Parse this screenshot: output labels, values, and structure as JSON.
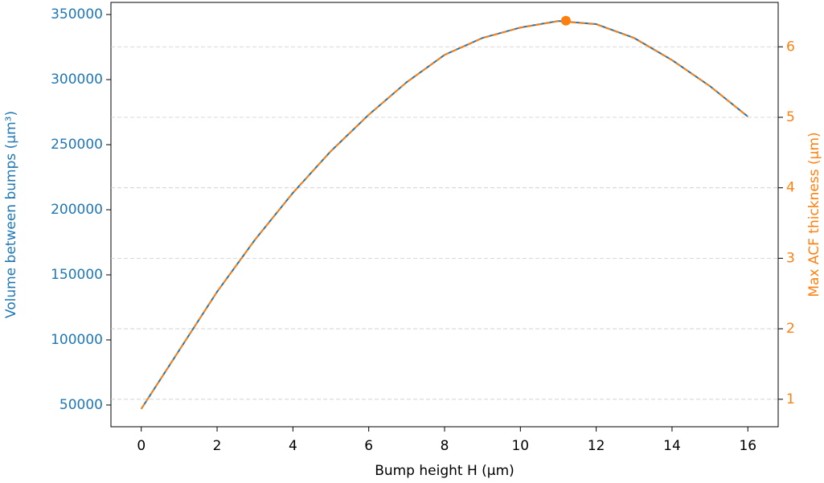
{
  "chart_data": {
    "type": "line",
    "xlabel": "Bump height H (µm)",
    "ylabel": "Volume between bumps (µm³)",
    "y2label": "Max ACF thickness (µm)",
    "x": [
      0,
      1,
      2,
      3,
      4,
      5,
      6,
      7,
      8,
      9,
      10,
      11,
      12,
      13,
      14,
      15,
      16
    ],
    "series": [
      {
        "color": "#1f77b4",
        "linestyle": "solid",
        "axis": "y",
        "values": [
          47000,
          92000,
          137000,
          177000,
          213000,
          245000,
          273000,
          298000,
          319000,
          332000,
          340000,
          345000,
          342600,
          332000,
          315000,
          295000,
          271600
        ]
      },
      {
        "color": "#ff7f0e",
        "linestyle": "dashed",
        "axis": "y2",
        "values": [
          0.864,
          1.695,
          2.525,
          3.263,
          3.927,
          4.518,
          5.035,
          5.497,
          5.884,
          6.123,
          6.271,
          6.363,
          6.319,
          6.123,
          5.81,
          5.441,
          5.009
        ]
      }
    ],
    "peak": {
      "x": 11.2,
      "y": 6.37,
      "axis": "y2",
      "color": "#ff7f0e"
    },
    "xlim": [
      -0.8,
      16.8
    ],
    "ylim": [
      33300,
      359300
    ],
    "y2lim": [
      0.61,
      6.63
    ],
    "xticks": [
      0,
      2,
      4,
      6,
      8,
      10,
      12,
      14,
      16
    ],
    "yticks": [
      50000,
      100000,
      150000,
      200000,
      250000,
      300000,
      350000
    ],
    "y2ticks": [
      1,
      2,
      3,
      4,
      5,
      6
    ],
    "grid": "y2",
    "ycolor": "#1f77b4",
    "y2color": "#ff7f0e"
  }
}
